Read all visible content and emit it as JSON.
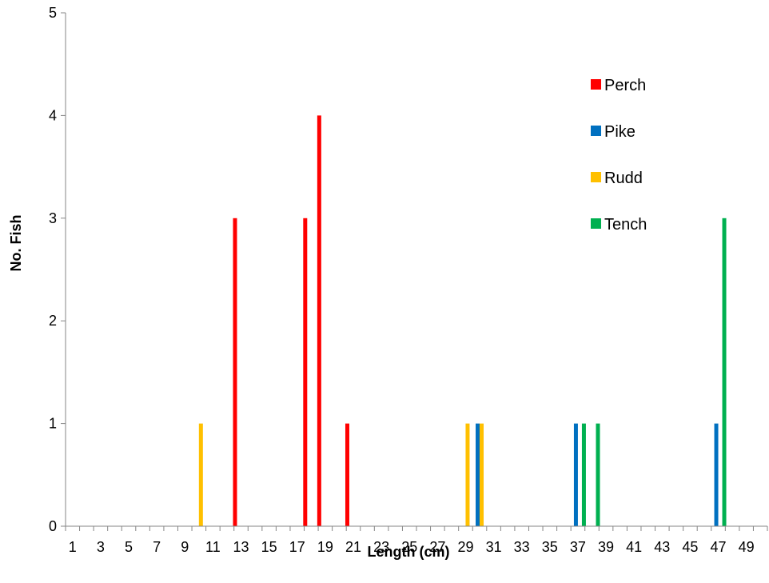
{
  "chart_data": {
    "type": "bar",
    "xlabel": "Length (cm)",
    "ylabel": "No. Fish",
    "ylim": [
      0,
      5
    ],
    "yticks": [
      0,
      1,
      2,
      3,
      4,
      5
    ],
    "xlim": [
      1,
      50
    ],
    "xtick_labels": [
      1,
      3,
      5,
      7,
      9,
      11,
      13,
      15,
      17,
      19,
      21,
      23,
      25,
      27,
      29,
      31,
      33,
      35,
      37,
      39,
      41,
      43,
      45,
      47,
      49
    ],
    "grid": false,
    "legend_position": "top-right",
    "series": [
      {
        "name": "Perch",
        "color": "#ff0000",
        "points": [
          {
            "x": 13,
            "y": 3
          },
          {
            "x": 18,
            "y": 3
          },
          {
            "x": 19,
            "y": 4
          },
          {
            "x": 21,
            "y": 1
          }
        ]
      },
      {
        "name": "Pike",
        "color": "#0070c0",
        "points": [
          {
            "x": 30,
            "y": 1
          },
          {
            "x": 37,
            "y": 1
          },
          {
            "x": 47,
            "y": 1
          }
        ]
      },
      {
        "name": "Rudd",
        "color": "#ffc000",
        "points": [
          {
            "x": 10,
            "y": 1
          },
          {
            "x": 29,
            "y": 1
          },
          {
            "x": 30,
            "y": 1
          }
        ]
      },
      {
        "name": "Tench",
        "color": "#00b050",
        "points": [
          {
            "x": 37,
            "y": 1
          },
          {
            "x": 38,
            "y": 1
          },
          {
            "x": 47,
            "y": 3
          }
        ]
      }
    ]
  }
}
